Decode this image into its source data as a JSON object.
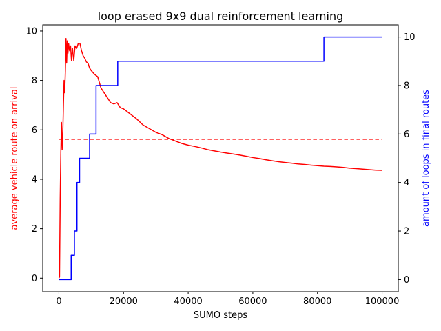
{
  "chart_data": {
    "type": "line",
    "title": "loop erased 9x9 dual reinforcement learning",
    "xlabel": "SUMO steps",
    "ylabel_left": "average vehicle route on arrival",
    "ylabel_right": "amount of loops in final routes",
    "xlim": [
      -5000,
      105000
    ],
    "ylim_left": [
      -0.55,
      10.25
    ],
    "ylim_right": [
      -0.5,
      10.5
    ],
    "x_ticks": [
      0,
      20000,
      40000,
      60000,
      80000,
      100000
    ],
    "x_tick_labels": [
      "0",
      "20000",
      "40000",
      "60000",
      "80000",
      "100000"
    ],
    "y_left_ticks": [
      0,
      2,
      4,
      6,
      8,
      10
    ],
    "y_left_tick_labels": [
      "0",
      "2",
      "4",
      "6",
      "8",
      "10"
    ],
    "y_right_ticks": [
      0,
      2,
      4,
      6,
      8,
      10
    ],
    "y_right_tick_labels": [
      "0",
      "2",
      "4",
      "6",
      "8",
      "10"
    ],
    "grid": false,
    "colors": {
      "left_axis": "#ff0000",
      "right_axis": "#0000ff",
      "avg_route": "#ff0000",
      "reference": "#ff0000",
      "loops": "#0000ff"
    },
    "series": [
      {
        "axis": "left",
        "style": "solid",
        "points": [
          [
            0,
            0.0
          ],
          [
            200,
            0.05
          ],
          [
            400,
            3.2
          ],
          [
            600,
            5.1
          ],
          [
            800,
            6.3
          ],
          [
            1000,
            5.2
          ],
          [
            1200,
            5.8
          ],
          [
            1400,
            7.0
          ],
          [
            1600,
            8.0
          ],
          [
            1800,
            7.5
          ],
          [
            2000,
            8.4
          ],
          [
            2200,
            9.7
          ],
          [
            2400,
            8.7
          ],
          [
            2600,
            9.6
          ],
          [
            2800,
            9.1
          ],
          [
            3000,
            9.5
          ],
          [
            3300,
            9.2
          ],
          [
            3600,
            9.4
          ],
          [
            3900,
            8.8
          ],
          [
            4200,
            9.3
          ],
          [
            4600,
            8.8
          ],
          [
            5000,
            9.4
          ],
          [
            5500,
            9.3
          ],
          [
            6000,
            9.5
          ],
          [
            6500,
            9.5
          ],
          [
            7000,
            9.2
          ],
          [
            7500,
            9.0
          ],
          [
            8000,
            8.9
          ],
          [
            8500,
            8.75
          ],
          [
            9000,
            8.7
          ],
          [
            9500,
            8.5
          ],
          [
            10000,
            8.4
          ],
          [
            11000,
            8.25
          ],
          [
            12000,
            8.15
          ],
          [
            13000,
            7.7
          ],
          [
            14000,
            7.5
          ],
          [
            15000,
            7.3
          ],
          [
            16000,
            7.1
          ],
          [
            17000,
            7.05
          ],
          [
            18000,
            7.1
          ],
          [
            19000,
            6.9
          ],
          [
            20000,
            6.85
          ],
          [
            22000,
            6.65
          ],
          [
            24000,
            6.45
          ],
          [
            26000,
            6.2
          ],
          [
            28000,
            6.05
          ],
          [
            30000,
            5.9
          ],
          [
            32000,
            5.8
          ],
          [
            34000,
            5.65
          ],
          [
            36000,
            5.55
          ],
          [
            38000,
            5.45
          ],
          [
            40000,
            5.38
          ],
          [
            42000,
            5.33
          ],
          [
            44000,
            5.27
          ],
          [
            46000,
            5.2
          ],
          [
            48000,
            5.15
          ],
          [
            50000,
            5.1
          ],
          [
            52000,
            5.06
          ],
          [
            54000,
            5.02
          ],
          [
            56000,
            4.98
          ],
          [
            58000,
            4.93
          ],
          [
            60000,
            4.88
          ],
          [
            62000,
            4.84
          ],
          [
            64000,
            4.79
          ],
          [
            66000,
            4.75
          ],
          [
            68000,
            4.71
          ],
          [
            70000,
            4.68
          ],
          [
            72000,
            4.65
          ],
          [
            74000,
            4.62
          ],
          [
            76000,
            4.6
          ],
          [
            78000,
            4.57
          ],
          [
            80000,
            4.55
          ],
          [
            82000,
            4.53
          ],
          [
            84000,
            4.52
          ],
          [
            86000,
            4.5
          ],
          [
            88000,
            4.48
          ],
          [
            90000,
            4.45
          ],
          [
            92000,
            4.43
          ],
          [
            94000,
            4.41
          ],
          [
            96000,
            4.39
          ],
          [
            98000,
            4.37
          ],
          [
            100000,
            4.36
          ]
        ]
      },
      {
        "axis": "left",
        "style": "dashed",
        "points": [
          [
            0,
            5.62
          ],
          [
            100000,
            5.62
          ]
        ]
      },
      {
        "axis": "right",
        "style": "step",
        "points": [
          [
            0,
            0
          ],
          [
            3800,
            0
          ],
          [
            3800,
            1
          ],
          [
            4800,
            1
          ],
          [
            4800,
            2
          ],
          [
            5600,
            2
          ],
          [
            5600,
            4
          ],
          [
            6400,
            4
          ],
          [
            6400,
            5
          ],
          [
            9500,
            5
          ],
          [
            9500,
            6
          ],
          [
            11500,
            6
          ],
          [
            11500,
            8
          ],
          [
            18200,
            8
          ],
          [
            18200,
            9
          ],
          [
            82000,
            9
          ],
          [
            82000,
            10
          ],
          [
            100000,
            10
          ]
        ]
      }
    ]
  }
}
